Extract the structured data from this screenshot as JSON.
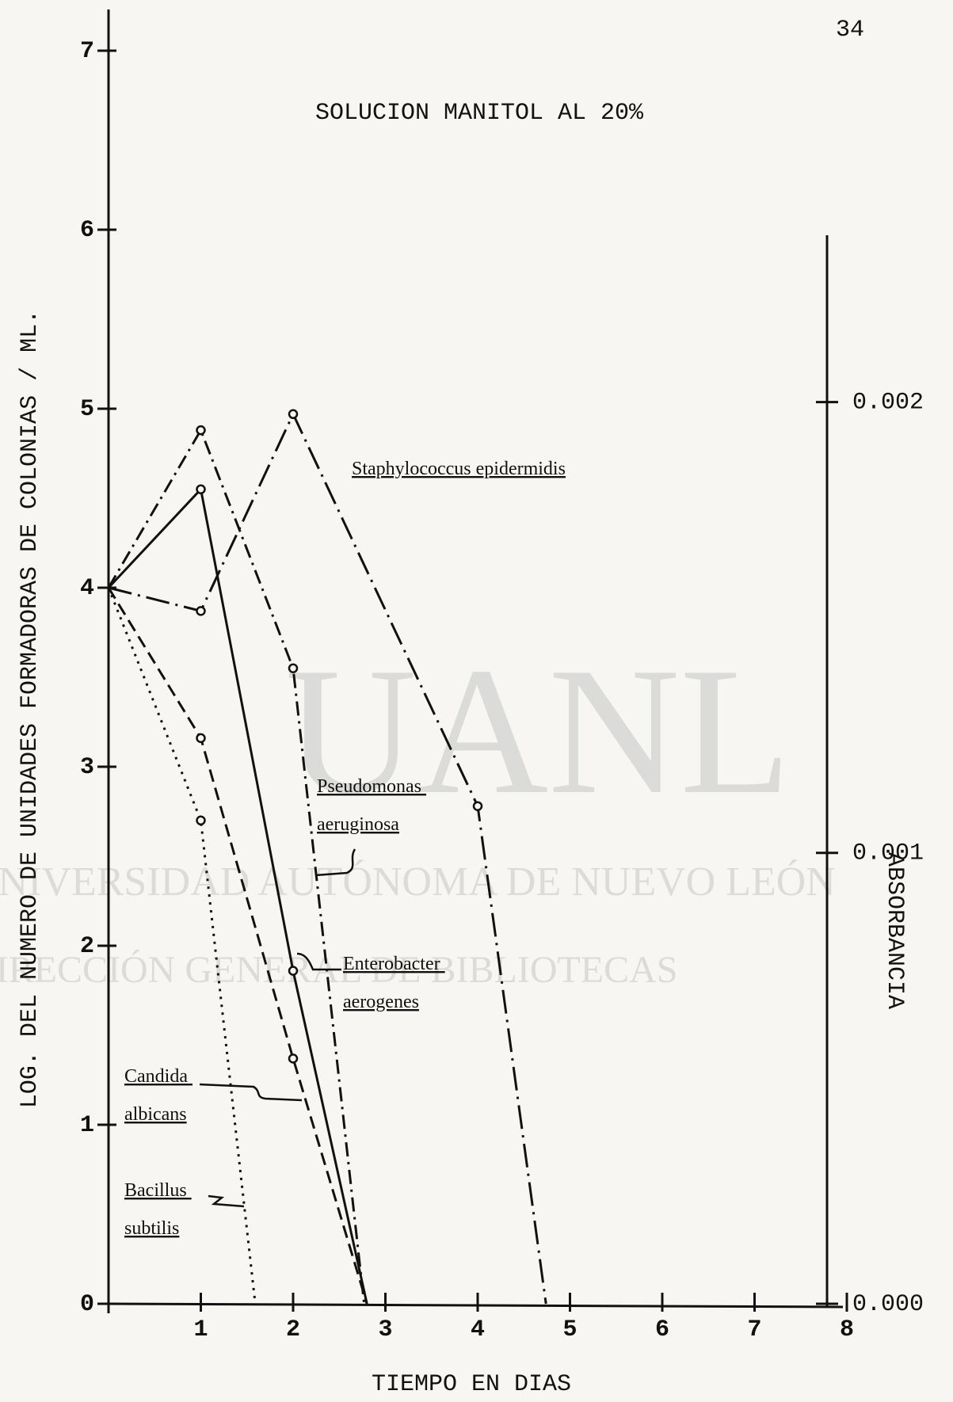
{
  "page_number": "34",
  "watermark": [
    "UANL",
    "UNIVERSIDAD AUTÓNOMA DE NUEVO LEÓN",
    "DIRECCIÓN GENERAL DE BIBLIOTECAS"
  ],
  "chart_data": {
    "type": "line",
    "title": "SOLUCION MANITOL AL 20%",
    "xlabel": "TIEMPO EN DIAS",
    "ylabel": "LOG. DEL NUMERO DE UNIDADES FORMADORAS DE COLONIAS / ML.",
    "y2label": "ABSORBANCIA",
    "xlim": [
      0,
      8
    ],
    "xticks": [
      1,
      2,
      3,
      4,
      5,
      6,
      7,
      8
    ],
    "ylim": [
      0,
      7
    ],
    "yticks": [
      0,
      1,
      2,
      3,
      4,
      5,
      6,
      7
    ],
    "y2lim": [
      0,
      0.00237
    ],
    "y2ticks": [
      {
        "value": 0,
        "label": "0.000"
      },
      {
        "value": 0.001,
        "label": "0.001"
      },
      {
        "value": 0.002,
        "label": "0.002"
      }
    ],
    "grid": false,
    "series": [
      {
        "name": "Staphylococcus epidermidis",
        "color": "#111111",
        "line_style": "dash-dot-long",
        "x": [
          0,
          1,
          2,
          4,
          4.74
        ],
        "values": [
          4,
          3.87,
          4.97,
          2.78,
          0
        ]
      },
      {
        "name": "Pseudomonas aeruginosa",
        "color": "#111111",
        "line_style": "dash-dot",
        "x": [
          0,
          1,
          2,
          2.77
        ],
        "values": [
          4,
          4.88,
          3.55,
          0
        ]
      },
      {
        "name": "Enterobacter aerogenes",
        "color": "#111111",
        "line_style": "solid",
        "x": [
          0,
          1,
          2,
          2.8
        ],
        "values": [
          4,
          4.55,
          1.86,
          0
        ]
      },
      {
        "name": "Candida albicans",
        "color": "#111111",
        "line_style": "dashed",
        "x": [
          0,
          1,
          2,
          2.8
        ],
        "values": [
          4,
          3.16,
          1.37,
          0
        ]
      },
      {
        "name": "Bacillus subtilis",
        "color": "#111111",
        "line_style": "dotted",
        "x": [
          0,
          1,
          1.59
        ],
        "values": [
          4,
          2.7,
          0
        ]
      }
    ]
  }
}
